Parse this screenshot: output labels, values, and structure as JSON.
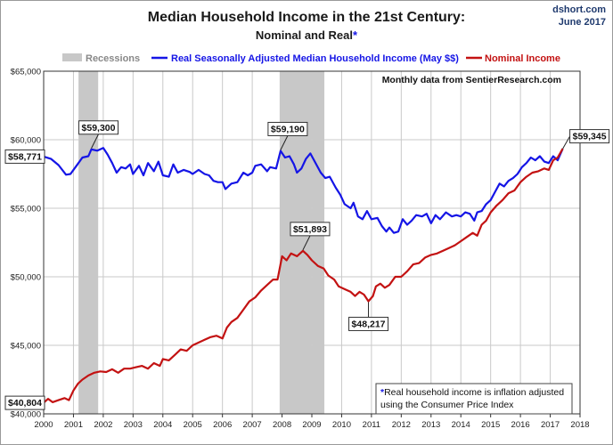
{
  "header": {
    "title": "Median Household Income in the 21st Century:",
    "subtitle_main": "Nominal and Real",
    "subtitle_star": "*",
    "credit_site": "dshort.com",
    "credit_date": "June 2017"
  },
  "colors": {
    "real": "#1515e6",
    "nominal": "#c31212",
    "recession": "#c8c8c8",
    "grid": "#c9c9c9"
  },
  "legend": {
    "recessions": "Recessions",
    "real": "Real Seasonally Adjusted Median Household Income (May $$)",
    "nominal": "Nominal Income"
  },
  "source_note": "Monthly data from SentierResearch.com",
  "footnote": {
    "star": "*",
    "line1": "Real household  income is inflation adjusted",
    "line2": "using  the Consumer Price Index"
  },
  "chart_data": {
    "type": "line",
    "xlim": [
      2000,
      2018
    ],
    "ylim": [
      40000,
      65000
    ],
    "x_ticks": [
      "2000",
      "2001",
      "2002",
      "2003",
      "2004",
      "2005",
      "2006",
      "2007",
      "2008",
      "2009",
      "2010",
      "2011",
      "2012",
      "2013",
      "2014",
      "2015",
      "2016",
      "2017",
      "2018"
    ],
    "y_ticks": [
      {
        "value": 40000,
        "label": "$40,000"
      },
      {
        "value": 45000,
        "label": "$45,000"
      },
      {
        "value": 50000,
        "label": "$50,000"
      },
      {
        "value": 55000,
        "label": "$55,000"
      },
      {
        "value": 60000,
        "label": "$60,000"
      },
      {
        "value": 65000,
        "label": "$65,000"
      }
    ],
    "grid": true,
    "legend_position": "top",
    "recessions": [
      {
        "start": 2001.17,
        "end": 2001.83
      },
      {
        "start": 2007.92,
        "end": 2009.42
      }
    ],
    "series": [
      {
        "name": "Real Seasonally Adjusted Median Household Income (May $$)",
        "key": "real",
        "points": [
          [
            2000.0,
            58771
          ],
          [
            2000.25,
            58600
          ],
          [
            2000.5,
            58150
          ],
          [
            2000.75,
            57450
          ],
          [
            2000.9,
            57500
          ],
          [
            2001.1,
            58100
          ],
          [
            2001.3,
            58700
          ],
          [
            2001.5,
            58800
          ],
          [
            2001.6,
            59300
          ],
          [
            2001.8,
            59200
          ],
          [
            2002.0,
            59400
          ],
          [
            2002.15,
            58900
          ],
          [
            2002.3,
            58300
          ],
          [
            2002.45,
            57600
          ],
          [
            2002.6,
            58000
          ],
          [
            2002.75,
            57900
          ],
          [
            2002.9,
            58200
          ],
          [
            2003.0,
            57500
          ],
          [
            2003.2,
            58100
          ],
          [
            2003.35,
            57400
          ],
          [
            2003.5,
            58300
          ],
          [
            2003.7,
            57700
          ],
          [
            2003.85,
            58400
          ],
          [
            2004.0,
            57400
          ],
          [
            2004.2,
            57300
          ],
          [
            2004.35,
            58200
          ],
          [
            2004.5,
            57600
          ],
          [
            2004.7,
            57800
          ],
          [
            2004.9,
            57650
          ],
          [
            2005.0,
            57500
          ],
          [
            2005.2,
            57800
          ],
          [
            2005.4,
            57500
          ],
          [
            2005.55,
            57400
          ],
          [
            2005.7,
            57000
          ],
          [
            2005.85,
            56900
          ],
          [
            2006.0,
            56900
          ],
          [
            2006.1,
            56400
          ],
          [
            2006.3,
            56800
          ],
          [
            2006.5,
            56900
          ],
          [
            2006.7,
            57600
          ],
          [
            2006.85,
            57400
          ],
          [
            2007.0,
            57600
          ],
          [
            2007.1,
            58100
          ],
          [
            2007.3,
            58200
          ],
          [
            2007.5,
            57700
          ],
          [
            2007.6,
            58000
          ],
          [
            2007.8,
            57900
          ],
          [
            2007.95,
            59190
          ],
          [
            2008.1,
            58700
          ],
          [
            2008.25,
            58800
          ],
          [
            2008.4,
            58200
          ],
          [
            2008.5,
            57600
          ],
          [
            2008.65,
            57900
          ],
          [
            2008.8,
            58600
          ],
          [
            2008.95,
            59000
          ],
          [
            2009.1,
            58400
          ],
          [
            2009.3,
            57600
          ],
          [
            2009.45,
            57200
          ],
          [
            2009.6,
            57300
          ],
          [
            2009.8,
            56500
          ],
          [
            2009.95,
            56000
          ],
          [
            2010.1,
            55300
          ],
          [
            2010.3,
            55000
          ],
          [
            2010.4,
            55400
          ],
          [
            2010.55,
            54400
          ],
          [
            2010.7,
            54200
          ],
          [
            2010.85,
            54800
          ],
          [
            2011.0,
            54200
          ],
          [
            2011.2,
            54300
          ],
          [
            2011.35,
            53700
          ],
          [
            2011.5,
            53300
          ],
          [
            2011.6,
            53600
          ],
          [
            2011.75,
            53200
          ],
          [
            2011.9,
            53300
          ],
          [
            2012.05,
            54200
          ],
          [
            2012.2,
            53800
          ],
          [
            2012.35,
            54100
          ],
          [
            2012.5,
            54500
          ],
          [
            2012.7,
            54400
          ],
          [
            2012.85,
            54600
          ],
          [
            2013.0,
            53900
          ],
          [
            2013.15,
            54500
          ],
          [
            2013.3,
            54200
          ],
          [
            2013.5,
            54700
          ],
          [
            2013.7,
            54400
          ],
          [
            2013.85,
            54500
          ],
          [
            2014.0,
            54400
          ],
          [
            2014.15,
            54700
          ],
          [
            2014.3,
            54600
          ],
          [
            2014.45,
            54100
          ],
          [
            2014.55,
            54700
          ],
          [
            2014.7,
            54800
          ],
          [
            2014.85,
            55300
          ],
          [
            2015.0,
            55600
          ],
          [
            2015.15,
            56200
          ],
          [
            2015.3,
            56800
          ],
          [
            2015.45,
            56600
          ],
          [
            2015.6,
            57000
          ],
          [
            2015.75,
            57200
          ],
          [
            2015.9,
            57500
          ],
          [
            2016.05,
            58000
          ],
          [
            2016.2,
            58300
          ],
          [
            2016.35,
            58700
          ],
          [
            2016.5,
            58500
          ],
          [
            2016.65,
            58800
          ],
          [
            2016.8,
            58400
          ],
          [
            2016.95,
            58300
          ],
          [
            2017.1,
            58800
          ],
          [
            2017.25,
            58500
          ],
          [
            2017.42,
            59345
          ]
        ]
      },
      {
        "name": "Nominal Income",
        "key": "nominal",
        "points": [
          [
            2000.0,
            40804
          ],
          [
            2000.15,
            41100
          ],
          [
            2000.3,
            40850
          ],
          [
            2000.5,
            41000
          ],
          [
            2000.7,
            41150
          ],
          [
            2000.85,
            41000
          ],
          [
            2001.0,
            41700
          ],
          [
            2001.15,
            42200
          ],
          [
            2001.3,
            42500
          ],
          [
            2001.5,
            42800
          ],
          [
            2001.7,
            43000
          ],
          [
            2001.9,
            43100
          ],
          [
            2002.1,
            43050
          ],
          [
            2002.3,
            43250
          ],
          [
            2002.5,
            43000
          ],
          [
            2002.7,
            43300
          ],
          [
            2002.9,
            43300
          ],
          [
            2003.1,
            43400
          ],
          [
            2003.3,
            43500
          ],
          [
            2003.5,
            43300
          ],
          [
            2003.7,
            43700
          ],
          [
            2003.9,
            43500
          ],
          [
            2004.0,
            44000
          ],
          [
            2004.2,
            43900
          ],
          [
            2004.4,
            44300
          ],
          [
            2004.6,
            44700
          ],
          [
            2004.8,
            44600
          ],
          [
            2005.0,
            45000
          ],
          [
            2005.2,
            45200
          ],
          [
            2005.4,
            45400
          ],
          [
            2005.6,
            45600
          ],
          [
            2005.8,
            45700
          ],
          [
            2006.0,
            45500
          ],
          [
            2006.15,
            46300
          ],
          [
            2006.3,
            46700
          ],
          [
            2006.5,
            47000
          ],
          [
            2006.7,
            47600
          ],
          [
            2006.9,
            48200
          ],
          [
            2007.1,
            48500
          ],
          [
            2007.3,
            49000
          ],
          [
            2007.5,
            49400
          ],
          [
            2007.7,
            49800
          ],
          [
            2007.85,
            49800
          ],
          [
            2008.0,
            51500
          ],
          [
            2008.15,
            51200
          ],
          [
            2008.3,
            51700
          ],
          [
            2008.5,
            51500
          ],
          [
            2008.7,
            51893
          ],
          [
            2008.85,
            51600
          ],
          [
            2009.0,
            51200
          ],
          [
            2009.2,
            50800
          ],
          [
            2009.4,
            50600
          ],
          [
            2009.55,
            50100
          ],
          [
            2009.75,
            49800
          ],
          [
            2009.9,
            49300
          ],
          [
            2010.1,
            49100
          ],
          [
            2010.3,
            48900
          ],
          [
            2010.45,
            48600
          ],
          [
            2010.6,
            48900
          ],
          [
            2010.75,
            48700
          ],
          [
            2010.9,
            48217
          ],
          [
            2011.05,
            48600
          ],
          [
            2011.15,
            49300
          ],
          [
            2011.3,
            49500
          ],
          [
            2011.45,
            49200
          ],
          [
            2011.6,
            49400
          ],
          [
            2011.8,
            50000
          ],
          [
            2012.0,
            50000
          ],
          [
            2012.2,
            50400
          ],
          [
            2012.4,
            50900
          ],
          [
            2012.6,
            51000
          ],
          [
            2012.8,
            51400
          ],
          [
            2013.0,
            51600
          ],
          [
            2013.2,
            51700
          ],
          [
            2013.4,
            51900
          ],
          [
            2013.6,
            52100
          ],
          [
            2013.8,
            52300
          ],
          [
            2014.0,
            52600
          ],
          [
            2014.2,
            52900
          ],
          [
            2014.4,
            53200
          ],
          [
            2014.55,
            53000
          ],
          [
            2014.7,
            53800
          ],
          [
            2014.85,
            54100
          ],
          [
            2015.0,
            54700
          ],
          [
            2015.2,
            55200
          ],
          [
            2015.4,
            55600
          ],
          [
            2015.6,
            56100
          ],
          [
            2015.8,
            56300
          ],
          [
            2016.0,
            56900
          ],
          [
            2016.2,
            57300
          ],
          [
            2016.4,
            57600
          ],
          [
            2016.6,
            57700
          ],
          [
            2016.8,
            57900
          ],
          [
            2016.95,
            57800
          ],
          [
            2017.1,
            58500
          ],
          [
            2017.25,
            58700
          ],
          [
            2017.42,
            59345
          ]
        ]
      }
    ],
    "annotations": [
      {
        "label": "$58,771",
        "series": "real",
        "x": 2000.0,
        "y": 58771,
        "placement": "left"
      },
      {
        "label": "$59,300",
        "series": "real",
        "x": 2001.6,
        "y": 59300,
        "placement": "above"
      },
      {
        "label": "$59,190",
        "series": "real",
        "x": 2007.95,
        "y": 59190,
        "placement": "above"
      },
      {
        "label": "$51,893",
        "series": "nominal",
        "x": 2008.7,
        "y": 51893,
        "placement": "above"
      },
      {
        "label": "$48,217",
        "series": "nominal",
        "x": 2010.9,
        "y": 48217,
        "placement": "below"
      },
      {
        "label": "$59,345",
        "series": "real",
        "x": 2017.42,
        "y": 59345,
        "placement": "right"
      },
      {
        "label": "$40,804",
        "series": "nominal",
        "x": 2000.0,
        "y": 40804,
        "placement": "left"
      }
    ]
  }
}
